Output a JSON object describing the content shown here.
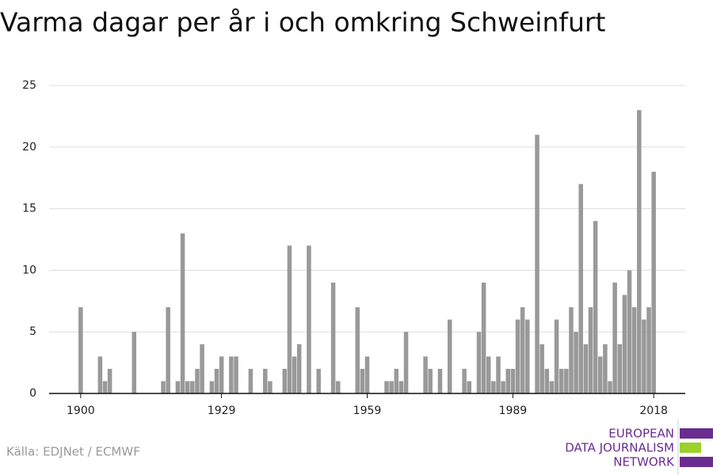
{
  "chart_data": {
    "type": "bar",
    "title": "Varma dagar per år i och omkring Schweinfurt",
    "source": "Källa: EDJNet / ECMWF",
    "logo": [
      "EUROPEAN",
      "DATA JOURNALISM",
      "NETWORK"
    ],
    "color": "#999999",
    "x": [
      1900,
      1901,
      1902,
      1903,
      1904,
      1905,
      1906,
      1907,
      1908,
      1909,
      1910,
      1911,
      1912,
      1913,
      1914,
      1915,
      1916,
      1917,
      1918,
      1919,
      1920,
      1921,
      1922,
      1923,
      1924,
      1925,
      1926,
      1927,
      1928,
      1929,
      1930,
      1931,
      1932,
      1933,
      1934,
      1935,
      1936,
      1937,
      1938,
      1939,
      1940,
      1941,
      1942,
      1943,
      1944,
      1945,
      1946,
      1947,
      1948,
      1949,
      1950,
      1951,
      1952,
      1953,
      1954,
      1955,
      1956,
      1957,
      1958,
      1959,
      1960,
      1961,
      1962,
      1963,
      1964,
      1965,
      1966,
      1967,
      1968,
      1969,
      1970,
      1971,
      1972,
      1973,
      1974,
      1975,
      1976,
      1977,
      1978,
      1979,
      1980,
      1981,
      1982,
      1983,
      1984,
      1985,
      1986,
      1987,
      1988,
      1989,
      1990,
      1991,
      1992,
      1993,
      1994,
      1995,
      1996,
      1997,
      1998,
      1999,
      2000,
      2001,
      2002,
      2003,
      2004,
      2005,
      2006,
      2007,
      2008,
      2009,
      2010,
      2011,
      2012,
      2013,
      2014,
      2015,
      2016,
      2017,
      2018
    ],
    "values": [
      7,
      0,
      0,
      0,
      3,
      1,
      2,
      0,
      0,
      0,
      0,
      5,
      0,
      0,
      0,
      0,
      0,
      1,
      7,
      0,
      1,
      13,
      1,
      1,
      2,
      4,
      0,
      1,
      2,
      3,
      0,
      3,
      3,
      0,
      0,
      2,
      0,
      0,
      2,
      1,
      0,
      0,
      2,
      12,
      3,
      4,
      0,
      12,
      0,
      2,
      0,
      0,
      9,
      1,
      0,
      0,
      0,
      7,
      2,
      3,
      0,
      0,
      0,
      1,
      1,
      2,
      1,
      5,
      0,
      0,
      0,
      3,
      2,
      0,
      2,
      0,
      6,
      0,
      0,
      2,
      1,
      0,
      5,
      9,
      3,
      1,
      3,
      1,
      2,
      2,
      6,
      7,
      6,
      0,
      21,
      4,
      2,
      1,
      6,
      2,
      2,
      7,
      5,
      17,
      4,
      7,
      14,
      3,
      4,
      1,
      9,
      4,
      8,
      10,
      7,
      23,
      6,
      7,
      18
    ],
    "xlim": [
      1893.5,
      2024.5
    ],
    "xticks": [
      1900,
      1929,
      1959,
      1989,
      2018
    ],
    "ylim": [
      0,
      25
    ],
    "yticks": [
      0,
      5,
      10,
      15,
      20,
      25
    ],
    "grid": true
  }
}
